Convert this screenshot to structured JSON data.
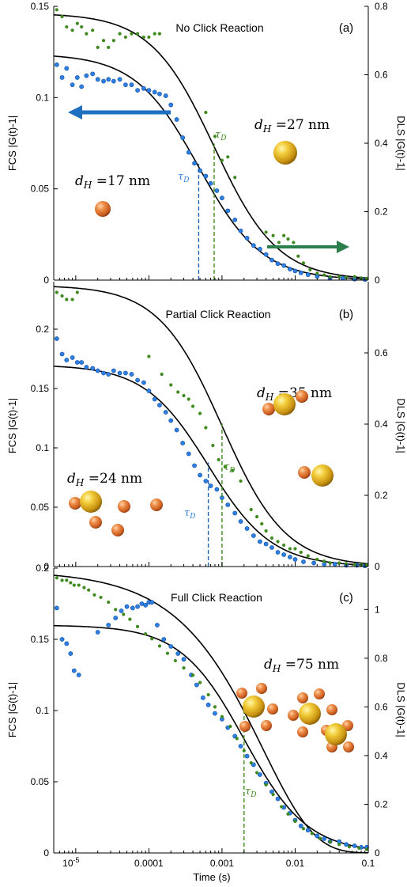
{
  "colors": {
    "fcs": "#2f7fe0",
    "fcs_dark": "#1f62b0",
    "dls": "#3f8a1e",
    "dls_arrow": "#2a7f4a",
    "fit": "#000000",
    "gold": "#d8a418",
    "orange": "#d96a2c"
  },
  "xaxis": {
    "label": "Time (s)",
    "scale": "log",
    "range": [
      5e-06,
      0.1
    ],
    "ticks": [
      {
        "value": 1e-05,
        "base": "10",
        "exp": "-5"
      },
      {
        "value": 0.0001,
        "label": "0.0001"
      },
      {
        "value": 0.001,
        "label": "0.001"
      },
      {
        "value": 0.01,
        "label": "0.01"
      },
      {
        "value": 0.1,
        "label": "0.1"
      }
    ]
  },
  "chart_data": [
    {
      "type": "scatter",
      "title": "No Click Reaction",
      "letter": "(a)",
      "ylabel_left": "FCS |G(t)-1|",
      "ylabel_right": "DLS |G(t)-1|",
      "ylim_left": [
        0,
        0.15
      ],
      "ylim_right": [
        0,
        0.8
      ],
      "yticks_left": [
        0,
        0.05,
        0.1,
        0.15
      ],
      "ytick_labels_left": [
        "0",
        "0.05",
        "0.1",
        "0.15"
      ],
      "yticks_right": [
        0,
        0.2,
        0.4,
        0.6,
        0.8
      ],
      "ytick_labels_right": [
        "0",
        "0.2",
        "0.4",
        "0.6",
        "0.8"
      ],
      "fcs_fit": {
        "amplitude": 0.124,
        "tau_d": 0.00048,
        "offset": 0.0
      },
      "dls_fit": {
        "amplitude": 0.78,
        "tau_d": 0.00078,
        "offset": 0.0
      },
      "tau_fcs": 0.00048,
      "tau_dls": 0.00078,
      "labels": {
        "fcs": {
          "dh": "17 nm",
          "tau": "D"
        },
        "dls": {
          "dh": "27 nm",
          "tau": "D"
        }
      },
      "series": [
        {
          "name": "FCS",
          "x": [
            5.5e-06,
            6.5e-06,
            7.5e-06,
            9e-06,
            1.05e-05,
            1.2e-05,
            1.4e-05,
            1.7e-05,
            2e-05,
            2.4e-05,
            2.8e-05,
            3.3e-05,
            4e-05,
            4.8e-05,
            5.8e-05,
            7e-05,
            8.5e-05,
            0.0001,
            0.00012,
            0.00014,
            0.00017,
            0.0002,
            0.00024,
            0.00029,
            0.00035,
            0.00042,
            0.0005,
            0.0006,
            0.0007,
            0.00085,
            0.001,
            0.0012,
            0.0015,
            0.0018,
            0.0022,
            0.0027,
            0.0033,
            0.004,
            0.0048,
            0.0058,
            0.007,
            0.0085,
            0.01,
            0.012,
            0.015,
            0.02,
            0.03,
            0.045,
            0.065,
            0.09
          ],
          "y": [
            0.118,
            0.111,
            0.116,
            0.107,
            0.111,
            0.106,
            0.112,
            0.113,
            0.11,
            0.109,
            0.11,
            0.109,
            0.11,
            0.107,
            0.107,
            0.104,
            0.105,
            0.104,
            0.103,
            0.102,
            0.101,
            0.096,
            0.088,
            0.078,
            0.07,
            0.064,
            0.06,
            0.057,
            0.053,
            0.049,
            0.045,
            0.038,
            0.033,
            0.027,
            0.023,
            0.019,
            0.017,
            0.014,
            0.011,
            0.009,
            0.008,
            0.006,
            0.005,
            0.004,
            0.003,
            0.002,
            0.001,
            0.001,
            0.0005,
            0.0003
          ]
        },
        {
          "name": "DLS",
          "x": [
            5.5e-06,
            6.5e-06,
            7.5e-06,
            9e-06,
            1.05e-05,
            1.2e-05,
            1.4e-05,
            1.7e-05,
            2e-05,
            2.4e-05,
            2.8e-05,
            3.3e-05,
            4e-05,
            4.8e-05,
            5.8e-05,
            7e-05,
            8.5e-05,
            0.0001,
            0.00012,
            0.00014,
            0.0006,
            0.0008,
            0.001,
            0.0012,
            0.0015,
            0.004,
            0.005,
            0.006,
            0.007,
            0.008,
            0.0095,
            0.011,
            0.013,
            0.016,
            0.02,
            0.025,
            0.03,
            0.04,
            0.05,
            0.065,
            0.08,
            0.095
          ],
          "y": [
            0.79,
            0.77,
            0.74,
            0.73,
            0.75,
            0.74,
            0.72,
            0.73,
            0.68,
            0.7,
            0.68,
            0.7,
            0.72,
            0.71,
            0.72,
            0.72,
            0.71,
            0.71,
            0.72,
            0.72,
            0.49,
            0.42,
            0.35,
            0.36,
            0.3,
            0.14,
            0.13,
            0.11,
            0.13,
            0.12,
            0.11,
            0.07,
            0.05,
            0.03,
            0.02,
            0.015,
            0.01,
            0.01,
            0.008,
            0.01,
            0.006,
            0.005
          ]
        }
      ]
    },
    {
      "type": "scatter",
      "title": "Partial Click Reaction",
      "letter": "(b)",
      "ylabel_left": "FCS |G(t)-1|",
      "ylabel_right": "DLS |G(t)-1|",
      "ylim_left": [
        0,
        0.24
      ],
      "ylim_right": [
        0,
        0.8
      ],
      "yticks_left": [
        0,
        0.05,
        0.1,
        0.15,
        0.2
      ],
      "ytick_labels_left": [
        "0",
        "0.05",
        "0.1",
        "0.15",
        "0.2"
      ],
      "yticks_right": [
        0,
        0.2,
        0.4,
        0.6
      ],
      "ytick_labels_right": [
        "0",
        "0.2",
        "0.4",
        "0.6"
      ],
      "fcs_fit": {
        "amplitude": 0.17,
        "tau_d": 0.00065,
        "offset": 0.0
      },
      "dls_fit": {
        "amplitude": 0.79,
        "tau_d": 0.001,
        "offset": 0.0
      },
      "tau_fcs": 0.00065,
      "tau_dls": 0.001,
      "labels": {
        "fcs": {
          "dh": "24 nm",
          "tau": "D"
        },
        "dls": {
          "dh": "35 nm",
          "tau": "D"
        }
      },
      "series": [
        {
          "name": "FCS",
          "x": [
            5.5e-06,
            6.5e-06,
            7.5e-06,
            9e-06,
            1.05e-05,
            1.2e-05,
            1.4e-05,
            1.7e-05,
            2e-05,
            2.4e-05,
            2.8e-05,
            3.3e-05,
            4e-05,
            4.8e-05,
            5.8e-05,
            7e-05,
            8.5e-05,
            0.0001,
            0.00012,
            0.00014,
            0.00017,
            0.0002,
            0.00024,
            0.00029,
            0.00035,
            0.00042,
            0.0005,
            0.0006,
            0.0007,
            0.00085,
            0.001,
            0.0012,
            0.0015,
            0.0018,
            0.0022,
            0.0027,
            0.0033,
            0.004,
            0.0048,
            0.0058,
            0.007,
            0.0085,
            0.01,
            0.013,
            0.018,
            0.025,
            0.035,
            0.05,
            0.07,
            0.09
          ],
          "y": [
            0.192,
            0.179,
            0.174,
            0.176,
            0.172,
            0.172,
            0.168,
            0.167,
            0.165,
            0.163,
            0.162,
            0.165,
            0.163,
            0.163,
            0.162,
            0.157,
            0.155,
            0.148,
            0.141,
            0.136,
            0.13,
            0.123,
            0.115,
            0.104,
            0.095,
            0.085,
            0.077,
            0.072,
            0.068,
            0.065,
            0.058,
            0.052,
            0.045,
            0.038,
            0.032,
            0.026,
            0.021,
            0.019,
            0.016,
            0.012,
            0.01,
            0.008,
            0.006,
            0.004,
            0.003,
            0.002,
            0.002,
            0.001,
            0.001,
            0.0005
          ]
        },
        {
          "name": "DLS",
          "x": [
            5.5e-06,
            6.5e-06,
            7.5e-06,
            9e-06,
            1.05e-05,
            0.0001,
            0.00015,
            0.0002,
            0.00025,
            0.0003,
            0.00035,
            0.0004,
            0.0005,
            0.0006,
            0.00075,
            0.0009,
            0.0011,
            0.0014,
            0.0018,
            0.0025,
            0.003,
            0.0035,
            0.004,
            0.0048,
            0.0058,
            0.007,
            0.0085,
            0.01,
            0.012,
            0.015,
            0.02,
            0.025,
            0.03,
            0.04,
            0.05,
            0.065,
            0.08,
            0.095
          ],
          "y": [
            0.77,
            0.76,
            0.75,
            0.75,
            0.77,
            0.59,
            0.54,
            0.51,
            0.49,
            0.48,
            0.47,
            0.45,
            0.43,
            0.39,
            0.34,
            0.3,
            0.28,
            0.27,
            0.24,
            0.16,
            0.14,
            0.12,
            0.1,
            0.08,
            0.07,
            0.06,
            0.05,
            0.05,
            0.04,
            0.03,
            0.02,
            0.015,
            0.01,
            0.01,
            0.008,
            0.006,
            0.005,
            0.004
          ]
        }
      ]
    },
    {
      "type": "scatter",
      "title": "Full Click Reaction",
      "letter": "(c)",
      "ylabel_left": "FCS |G(t)-1|",
      "ylabel_right": "DLS |G(t)-1|",
      "ylim_left": [
        0,
        0.2
      ],
      "ylim_right": [
        0,
        1.17
      ],
      "yticks_left": [
        0,
        0.05,
        0.1,
        0.15,
        0.2
      ],
      "ytick_labels_left": [
        "0",
        "0.05",
        "0.1",
        "0.15",
        "0.2"
      ],
      "yticks_right": [
        0,
        0.2,
        0.4,
        0.6,
        0.8,
        1
      ],
      "ytick_labels_right": [
        "0",
        "0.2",
        "0.4",
        "0.6",
        "0.8",
        "1"
      ],
      "fcs_fit": {
        "amplitude": 0.16,
        "tau_d": 0.002,
        "offset": 0.0
      },
      "dls_fit": {
        "amplitude": 1.16,
        "tau_d": 0.002,
        "offset": 0.0,
        "stretch": 0.62
      },
      "tau_fcs": 0.002,
      "tau_dls": 0.002,
      "labels": {
        "dls": {
          "dh": "75 nm",
          "tau": "D"
        }
      },
      "series": [
        {
          "name": "FCS",
          "x": [
            5.5e-06,
            6.5e-06,
            7.5e-06,
            8.5e-06,
            9.5e-06,
            1.1e-05,
            2e-05,
            2.8e-05,
            3.5e-05,
            4.2e-05,
            5e-05,
            6e-05,
            7e-05,
            8e-05,
            9e-05,
            0.0001,
            0.00011,
            0.00013,
            0.00016,
            0.0002,
            0.00025,
            0.0003,
            0.00038,
            0.00045,
            0.00055,
            0.00065,
            0.0008,
            0.001,
            0.0012,
            0.0015,
            0.0018,
            0.0022,
            0.0027,
            0.0033,
            0.004,
            0.0048,
            0.0058,
            0.007,
            0.0085,
            0.01,
            0.012,
            0.015,
            0.02,
            0.025,
            0.03,
            0.04,
            0.05,
            0.065,
            0.08,
            0.095
          ],
          "y": [
            0.172,
            0.15,
            0.147,
            0.14,
            0.128,
            0.125,
            0.155,
            0.16,
            0.165,
            0.17,
            0.173,
            0.172,
            0.173,
            0.175,
            0.174,
            0.176,
            0.176,
            0.16,
            0.15,
            0.145,
            0.14,
            0.136,
            0.125,
            0.118,
            0.109,
            0.104,
            0.098,
            0.094,
            0.088,
            0.082,
            0.075,
            0.068,
            0.062,
            0.055,
            0.049,
            0.043,
            0.038,
            0.032,
            0.028,
            0.023,
            0.019,
            0.016,
            0.012,
            0.01,
            0.008,
            0.008,
            0.006,
            0.005,
            0.004,
            0.004
          ]
        },
        {
          "name": "DLS",
          "x": [
            5.5e-06,
            6.5e-06,
            7.5e-06,
            8.5e-06,
            9.5e-06,
            1.1e-05,
            1.3e-05,
            1.5e-05,
            1.8e-05,
            2.2e-05,
            2.8e-05,
            3.5e-05,
            4.5e-05,
            5.5e-05,
            7e-05,
            9e-05,
            0.00011,
            0.00014,
            0.00018,
            0.00023,
            0.0003,
            0.0004,
            0.0005,
            0.00065,
            0.0008,
            0.001,
            0.0013,
            0.0016,
            0.002,
            0.0025,
            0.003,
            0.004,
            0.005,
            0.0065,
            0.008,
            0.01,
            0.013,
            0.017,
            0.022,
            0.03,
            0.04,
            0.055,
            0.075,
            0.095
          ],
          "y": [
            1.13,
            1.12,
            1.12,
            1.11,
            1.1,
            1.1,
            1.09,
            1.08,
            1.06,
            1.05,
            1.03,
            1.0,
            0.98,
            0.96,
            0.93,
            0.9,
            0.88,
            0.85,
            0.82,
            0.79,
            0.76,
            0.73,
            0.7,
            0.65,
            0.6,
            0.56,
            0.52,
            0.47,
            0.42,
            0.37,
            0.33,
            0.28,
            0.24,
            0.19,
            0.16,
            0.13,
            0.1,
            0.08,
            0.06,
            0.045,
            0.035,
            0.025,
            0.02,
            0.015
          ]
        }
      ]
    }
  ]
}
